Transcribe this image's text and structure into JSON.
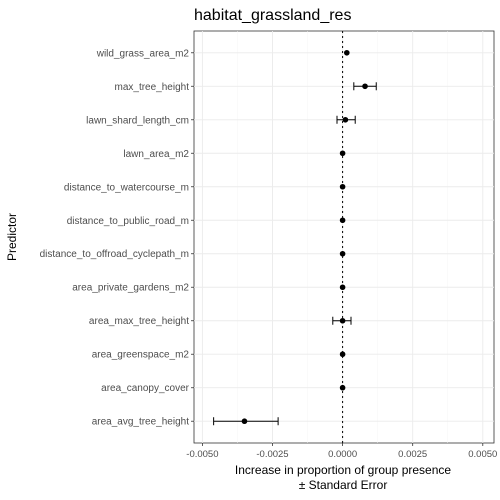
{
  "chart_data": {
    "type": "scatter",
    "title": "habitat_grassland_res",
    "xlabel_lines": [
      "Increase in proportion of group presence",
      "± Standard Error"
    ],
    "ylabel": "Predictor",
    "xlim": [
      -0.0053,
      0.0054
    ],
    "xticks": [
      -0.005,
      -0.0025,
      0.0,
      0.0025,
      0.005
    ],
    "xtick_labels": [
      "-0.0050",
      "-0.0025",
      "0.0000",
      "0.0025",
      "0.0050"
    ],
    "reference_line": 0,
    "grid": true,
    "points": [
      {
        "label": "wild_grass_area_m2",
        "estimate": 0.00015,
        "lower": 0.00015,
        "upper": 0.00015
      },
      {
        "label": "max_tree_height",
        "estimate": 0.0008,
        "lower": 0.0004,
        "upper": 0.0012
      },
      {
        "label": "lawn_shard_length_cm",
        "estimate": 0.0001,
        "lower": -0.0002,
        "upper": 0.00045
      },
      {
        "label": "lawn_area_m2",
        "estimate": 0.0,
        "lower": 0.0,
        "upper": 0.0
      },
      {
        "label": "distance_to_watercourse_m",
        "estimate": 0.0,
        "lower": 0.0,
        "upper": 0.0
      },
      {
        "label": "distance_to_public_road_m",
        "estimate": 0.0,
        "lower": 0.0,
        "upper": 0.0
      },
      {
        "label": "distance_to_offroad_cyclepath_m",
        "estimate": 0.0,
        "lower": 0.0,
        "upper": 0.0
      },
      {
        "label": "area_private_gardens_m2",
        "estimate": 0.0,
        "lower": 0.0,
        "upper": 0.0
      },
      {
        "label": "area_max_tree_height",
        "estimate": 0.0,
        "lower": -0.00035,
        "upper": 0.0003
      },
      {
        "label": "area_greenspace_m2",
        "estimate": 0.0,
        "lower": 0.0,
        "upper": 0.0
      },
      {
        "label": "area_canopy_cover",
        "estimate": 0.0,
        "lower": 0.0,
        "upper": 0.0
      },
      {
        "label": "area_avg_tree_height",
        "estimate": -0.0035,
        "lower": -0.0046,
        "upper": -0.0023
      }
    ]
  }
}
